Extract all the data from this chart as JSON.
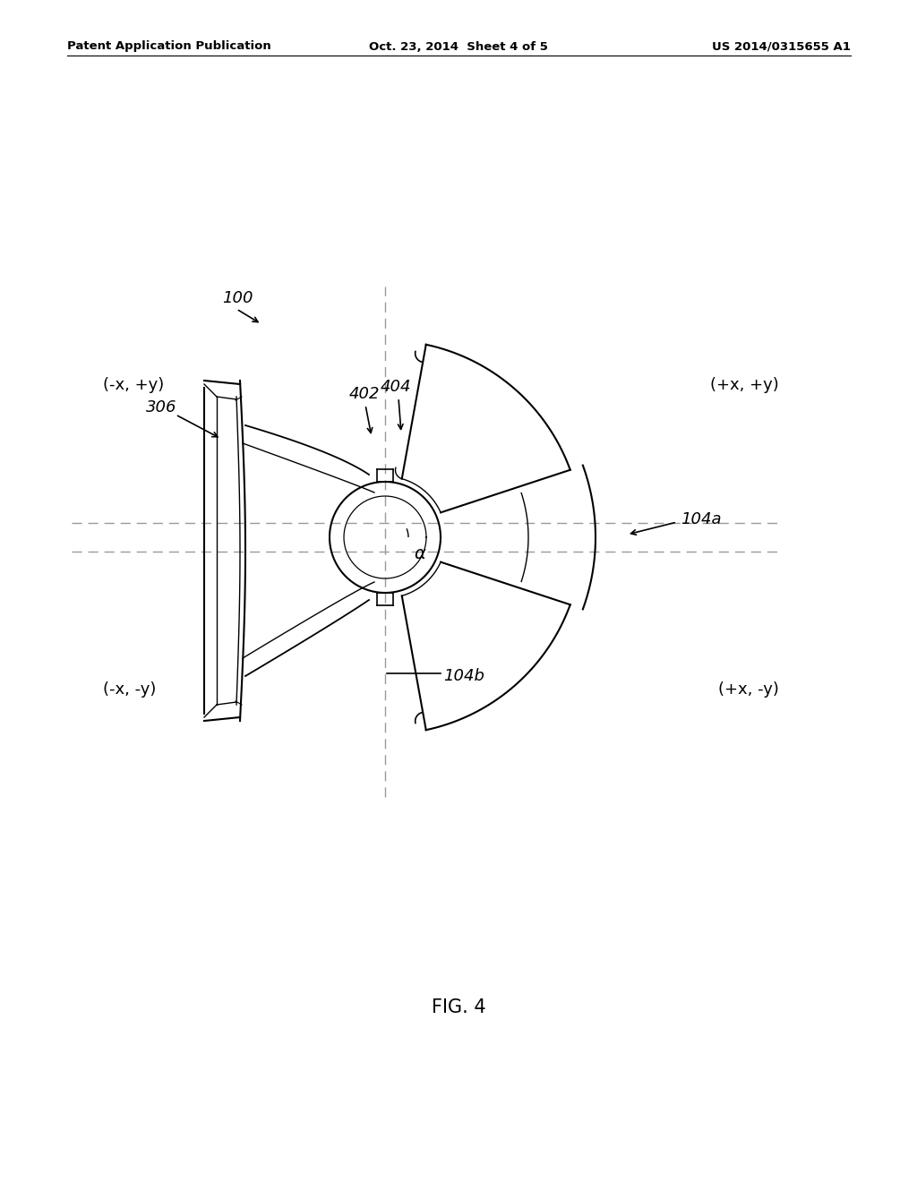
{
  "bg_color": "#ffffff",
  "line_color": "#000000",
  "dashed_line_color": "#999999",
  "header_left": "Patent Application Publication",
  "header_center": "Oct. 23, 2014  Sheet 4 of 5",
  "header_right": "US 2014/0315655 A1",
  "figure_label": "FIG. 4",
  "label_100": "100",
  "label_306": "306",
  "label_402": "402",
  "label_404": "404",
  "label_104a": "104a",
  "label_104b": "104b",
  "label_alpha": "α",
  "quadrant_tl": "(-x, +y)",
  "quadrant_tr": "(+x, +y)",
  "quadrant_bl": "(-x, -y)",
  "quadrant_br": "(+x, -y)"
}
